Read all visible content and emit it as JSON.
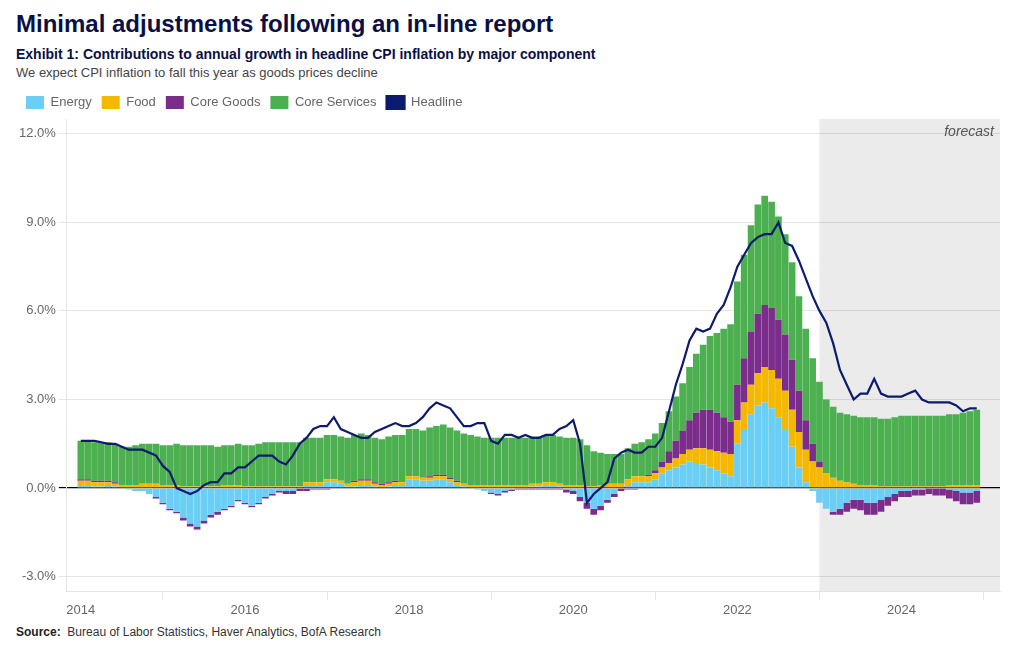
{
  "chart_data": {
    "type": "bar",
    "stacked": true,
    "title": "Minimal adjustments following an in-line report",
    "subtitle": [
      "Exhibit 1: Contributions to annual growth in headline CPI inflation by major component",
      "We expect CPI inflation to fall this year as goods prices decline"
    ],
    "source": [
      "Source:",
      "Bureau of Labor Statistics, Haver Analytics, BofA Research"
    ],
    "annotations": [
      {
        "text": "forecast",
        "x_range": [
          2023.0,
          2025.2
        ],
        "color": "#EBEBEB"
      }
    ],
    "legend": "upper left",
    "grid": "y",
    "xlim": [
      2013.83,
      2025.2
    ],
    "xticks": [
      2014,
      2016,
      2018,
      2020,
      2022,
      2024
    ],
    "ylim": [
      -3.5,
      12.5
    ],
    "yticks": [
      {
        "value": -3.0,
        "label": "-3.0%"
      },
      {
        "value": 0.0,
        "label": "0.0%"
      },
      {
        "value": 3.0,
        "label": "3.0%"
      },
      {
        "value": 6.0,
        "label": "6.0%"
      },
      {
        "value": 9.0,
        "label": "9.0%"
      },
      {
        "value": 12.0,
        "label": "12.0%"
      }
    ],
    "x": [
      2014.0,
      2014.083,
      2014.167,
      2014.25,
      2014.333,
      2014.417,
      2014.5,
      2014.583,
      2014.667,
      2014.75,
      2014.833,
      2014.917,
      2015.0,
      2015.083,
      2015.167,
      2015.25,
      2015.333,
      2015.417,
      2015.5,
      2015.583,
      2015.667,
      2015.75,
      2015.833,
      2015.917,
      2016.0,
      2016.083,
      2016.167,
      2016.25,
      2016.333,
      2016.417,
      2016.5,
      2016.583,
      2016.667,
      2016.75,
      2016.833,
      2016.917,
      2017.0,
      2017.083,
      2017.167,
      2017.25,
      2017.333,
      2017.417,
      2017.5,
      2017.583,
      2017.667,
      2017.75,
      2017.833,
      2017.917,
      2018.0,
      2018.083,
      2018.167,
      2018.25,
      2018.333,
      2018.417,
      2018.5,
      2018.583,
      2018.667,
      2018.75,
      2018.833,
      2018.917,
      2019.0,
      2019.083,
      2019.167,
      2019.25,
      2019.333,
      2019.417,
      2019.5,
      2019.583,
      2019.667,
      2019.75,
      2019.833,
      2019.917,
      2020.0,
      2020.083,
      2020.167,
      2020.25,
      2020.333,
      2020.417,
      2020.5,
      2020.583,
      2020.667,
      2020.75,
      2020.833,
      2020.917,
      2021.0,
      2021.083,
      2021.167,
      2021.25,
      2021.333,
      2021.417,
      2021.5,
      2021.583,
      2021.667,
      2021.75,
      2021.833,
      2021.917,
      2022.0,
      2022.083,
      2022.167,
      2022.25,
      2022.333,
      2022.417,
      2022.5,
      2022.583,
      2022.667,
      2022.75,
      2022.833,
      2022.917,
      2023.0,
      2023.083,
      2023.167,
      2023.25,
      2023.333,
      2023.417,
      2023.5,
      2023.583,
      2023.667,
      2023.75,
      2023.833,
      2023.917,
      2024.0,
      2024.083,
      2024.167,
      2024.25,
      2024.333,
      2024.417,
      2024.5,
      2024.583,
      2024.667,
      2024.75,
      2024.833,
      2024.917
    ],
    "series": [
      {
        "name": "Energy",
        "type": "bar",
        "color": "#6BCFF5",
        "values": [
          0.1,
          0.1,
          0.05,
          0.05,
          0.1,
          0.05,
          0.0,
          -0.05,
          -0.1,
          -0.1,
          -0.2,
          -0.3,
          -0.5,
          -0.7,
          -0.8,
          -1.0,
          -1.2,
          -1.3,
          -1.1,
          -0.9,
          -0.8,
          -0.7,
          -0.6,
          -0.4,
          -0.5,
          -0.6,
          -0.5,
          -0.3,
          -0.2,
          -0.1,
          -0.1,
          -0.1,
          0.0,
          0.1,
          0.1,
          0.1,
          0.2,
          0.2,
          0.15,
          0.05,
          0.05,
          0.1,
          0.1,
          0.05,
          0.0,
          0.05,
          0.1,
          0.1,
          0.3,
          0.3,
          0.25,
          0.25,
          0.3,
          0.3,
          0.2,
          0.1,
          0.05,
          0.0,
          -0.05,
          -0.1,
          -0.15,
          -0.2,
          -0.1,
          -0.05,
          0.0,
          0.0,
          0.05,
          0.05,
          0.1,
          0.1,
          0.05,
          -0.05,
          -0.1,
          -0.3,
          -0.5,
          -0.7,
          -0.6,
          -0.4,
          -0.2,
          0.0,
          0.1,
          0.2,
          0.2,
          0.2,
          0.3,
          0.5,
          0.6,
          0.7,
          0.8,
          0.9,
          0.85,
          0.8,
          0.7,
          0.6,
          0.5,
          0.4,
          1.5,
          2.0,
          2.5,
          2.8,
          2.9,
          2.7,
          2.4,
          2.0,
          1.4,
          0.7,
          0.2,
          -0.1,
          -0.5,
          -0.7,
          -0.8,
          -0.7,
          -0.5,
          -0.4,
          -0.4,
          -0.5,
          -0.5,
          -0.4,
          -0.3,
          -0.2,
          -0.1,
          -0.1,
          -0.05,
          -0.05,
          0.0,
          0.0,
          0.0,
          -0.05,
          -0.1,
          -0.15,
          -0.15,
          -0.1
        ]
      },
      {
        "name": "Food",
        "type": "bar",
        "color": "#F5B800",
        "values": [
          0.15,
          0.15,
          0.15,
          0.15,
          0.1,
          0.1,
          0.1,
          0.1,
          0.1,
          0.15,
          0.15,
          0.15,
          0.1,
          0.1,
          0.1,
          0.05,
          0.05,
          0.05,
          0.05,
          0.05,
          0.05,
          0.1,
          0.1,
          0.1,
          0.05,
          0.05,
          0.05,
          0.05,
          0.05,
          0.05,
          0.05,
          0.05,
          0.05,
          0.1,
          0.1,
          0.1,
          0.1,
          0.1,
          0.1,
          0.1,
          0.15,
          0.15,
          0.15,
          0.1,
          0.1,
          0.1,
          0.1,
          0.1,
          0.1,
          0.1,
          0.1,
          0.1,
          0.1,
          0.1,
          0.1,
          0.1,
          0.1,
          0.1,
          0.1,
          0.1,
          0.1,
          0.1,
          0.1,
          0.1,
          0.1,
          0.1,
          0.1,
          0.1,
          0.1,
          0.1,
          0.1,
          0.1,
          0.1,
          0.1,
          0.05,
          0.05,
          0.1,
          0.15,
          0.15,
          0.15,
          0.2,
          0.2,
          0.2,
          0.2,
          0.2,
          0.2,
          0.25,
          0.3,
          0.35,
          0.4,
          0.5,
          0.55,
          0.6,
          0.65,
          0.7,
          0.75,
          0.8,
          0.9,
          1.0,
          1.1,
          1.2,
          1.3,
          1.3,
          1.3,
          1.25,
          1.2,
          1.1,
          0.9,
          0.7,
          0.5,
          0.35,
          0.25,
          0.2,
          0.15,
          0.1,
          0.1,
          0.1,
          0.05,
          0.05,
          0.05,
          0.05,
          0.05,
          0.05,
          0.05,
          0.05,
          0.05,
          0.05,
          0.1,
          0.1,
          0.1,
          0.1,
          0.1
        ]
      },
      {
        "name": "Core Goods",
        "type": "bar",
        "color": "#7B2D8B",
        "values": [
          0.05,
          0.05,
          0.05,
          0.05,
          0.05,
          0.05,
          0.0,
          0.0,
          0.0,
          0.0,
          0.0,
          -0.05,
          -0.05,
          -0.05,
          -0.05,
          -0.1,
          -0.1,
          -0.1,
          -0.1,
          -0.1,
          -0.1,
          -0.05,
          -0.05,
          -0.05,
          -0.05,
          -0.05,
          -0.05,
          -0.05,
          -0.05,
          -0.05,
          -0.1,
          -0.1,
          -0.1,
          -0.1,
          -0.05,
          -0.05,
          -0.05,
          0.0,
          0.0,
          0.0,
          0.05,
          0.05,
          0.05,
          0.05,
          0.05,
          0.05,
          0.05,
          0.0,
          0.0,
          0.0,
          0.0,
          0.05,
          0.05,
          0.05,
          0.05,
          0.05,
          0.0,
          0.0,
          0.0,
          0.0,
          -0.05,
          -0.05,
          -0.05,
          -0.05,
          -0.05,
          -0.05,
          -0.05,
          -0.05,
          -0.05,
          -0.05,
          -0.05,
          -0.1,
          -0.1,
          -0.15,
          -0.2,
          -0.2,
          -0.15,
          -0.1,
          -0.1,
          -0.1,
          -0.05,
          -0.05,
          0.0,
          0.05,
          0.1,
          0.2,
          0.4,
          0.6,
          0.8,
          1.0,
          1.2,
          1.3,
          1.35,
          1.3,
          1.2,
          1.1,
          1.2,
          1.5,
          1.8,
          2.0,
          2.1,
          2.1,
          2.0,
          1.9,
          1.7,
          1.4,
          1.0,
          0.6,
          0.2,
          0.0,
          -0.1,
          -0.2,
          -0.3,
          -0.3,
          -0.35,
          -0.4,
          -0.4,
          -0.4,
          -0.3,
          -0.25,
          -0.2,
          -0.2,
          -0.2,
          -0.2,
          -0.2,
          -0.25,
          -0.25,
          -0.3,
          -0.35,
          -0.4,
          -0.4,
          -0.4
        ]
      },
      {
        "name": "Core Services",
        "type": "bar",
        "color": "#4CAF50",
        "values": [
          1.3,
          1.3,
          1.3,
          1.3,
          1.3,
          1.3,
          1.3,
          1.3,
          1.35,
          1.35,
          1.35,
          1.35,
          1.35,
          1.35,
          1.4,
          1.4,
          1.4,
          1.4,
          1.4,
          1.4,
          1.35,
          1.35,
          1.35,
          1.4,
          1.4,
          1.4,
          1.45,
          1.5,
          1.5,
          1.5,
          1.5,
          1.5,
          1.5,
          1.5,
          1.5,
          1.5,
          1.5,
          1.5,
          1.5,
          1.55,
          1.55,
          1.55,
          1.5,
          1.5,
          1.5,
          1.55,
          1.55,
          1.6,
          1.6,
          1.6,
          1.6,
          1.65,
          1.65,
          1.7,
          1.7,
          1.7,
          1.7,
          1.7,
          1.65,
          1.6,
          1.6,
          1.6,
          1.6,
          1.6,
          1.6,
          1.6,
          1.6,
          1.6,
          1.6,
          1.6,
          1.6,
          1.6,
          1.6,
          1.55,
          1.4,
          1.2,
          1.1,
          1.0,
          1.0,
          1.0,
          1.05,
          1.1,
          1.15,
          1.2,
          1.25,
          1.3,
          1.35,
          1.5,
          1.6,
          1.8,
          2.0,
          2.2,
          2.5,
          2.7,
          3.0,
          3.3,
          3.5,
          3.5,
          3.6,
          3.7,
          3.7,
          3.6,
          3.5,
          3.4,
          3.3,
          3.2,
          3.1,
          2.9,
          2.7,
          2.5,
          2.4,
          2.3,
          2.3,
          2.3,
          2.3,
          2.3,
          2.3,
          2.3,
          2.3,
          2.35,
          2.4,
          2.4,
          2.4,
          2.4,
          2.4,
          2.4,
          2.4,
          2.4,
          2.4,
          2.45,
          2.5,
          2.55
        ]
      },
      {
        "name": "Headline",
        "type": "line",
        "color": "#0D1B6E",
        "values": [
          1.6,
          1.6,
          1.6,
          1.55,
          1.5,
          1.5,
          1.4,
          1.3,
          1.3,
          1.3,
          1.2,
          1.1,
          0.75,
          0.55,
          0.0,
          -0.1,
          -0.2,
          -0.1,
          0.1,
          0.2,
          0.2,
          0.5,
          0.5,
          0.7,
          0.7,
          0.9,
          1.1,
          1.1,
          1.1,
          0.9,
          0.8,
          1.1,
          1.5,
          1.7,
          2.0,
          2.1,
          2.1,
          2.4,
          2.0,
          1.9,
          1.8,
          1.7,
          1.7,
          1.9,
          2.0,
          2.1,
          2.2,
          2.1,
          2.1,
          2.2,
          2.4,
          2.7,
          2.9,
          2.8,
          2.7,
          2.4,
          2.1,
          2.1,
          2.2,
          2.2,
          1.6,
          1.5,
          1.8,
          1.8,
          1.7,
          1.8,
          1.7,
          1.7,
          1.8,
          1.8,
          2.0,
          2.1,
          2.3,
          1.5,
          -0.5,
          -0.2,
          0.0,
          0.2,
          1.0,
          1.2,
          1.3,
          1.2,
          1.2,
          1.4,
          1.4,
          1.7,
          2.6,
          3.5,
          4.2,
          5.0,
          5.4,
          5.3,
          5.4,
          5.9,
          6.2,
          6.8,
          7.5,
          7.9,
          8.3,
          8.5,
          8.6,
          8.6,
          9.0,
          8.3,
          8.2,
          7.7,
          7.1,
          6.5,
          6.0,
          5.6,
          4.9,
          4.0,
          3.5,
          3.0,
          3.2,
          3.2,
          3.7,
          3.2,
          3.1,
          3.1,
          3.1,
          3.2,
          3.3,
          3.0,
          2.9,
          2.9,
          2.9,
          2.9,
          2.8,
          2.6,
          2.7,
          2.7
        ]
      }
    ]
  }
}
